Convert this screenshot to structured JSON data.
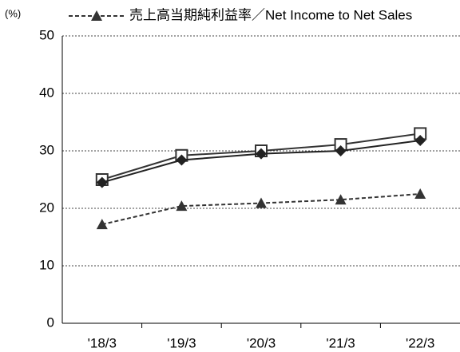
{
  "chart_data": {
    "type": "line",
    "y_label": "(%)",
    "categories": [
      "'18/3",
      "'19/3",
      "'20/3",
      "'21/3",
      "'22/3"
    ],
    "series": [
      {
        "color": "#333333",
        "marker": "square",
        "dashed": false,
        "values": [
          25,
          29.2,
          30,
          31.1,
          33
        ]
      },
      {
        "color": "#222222",
        "marker": "diamond",
        "dashed": false,
        "values": [
          24.5,
          28.4,
          29.5,
          30,
          31.8
        ]
      },
      {
        "name": "売上高当期純利益率／Net Income to Net Sales",
        "color": "#333333",
        "marker": "triangle",
        "dashed": true,
        "values": [
          17.2,
          20.4,
          20.9,
          21.5,
          22.5
        ]
      }
    ],
    "ylim": [
      0,
      50
    ],
    "yticks": [
      0,
      10,
      20,
      30,
      40,
      50
    ],
    "grid": true
  }
}
